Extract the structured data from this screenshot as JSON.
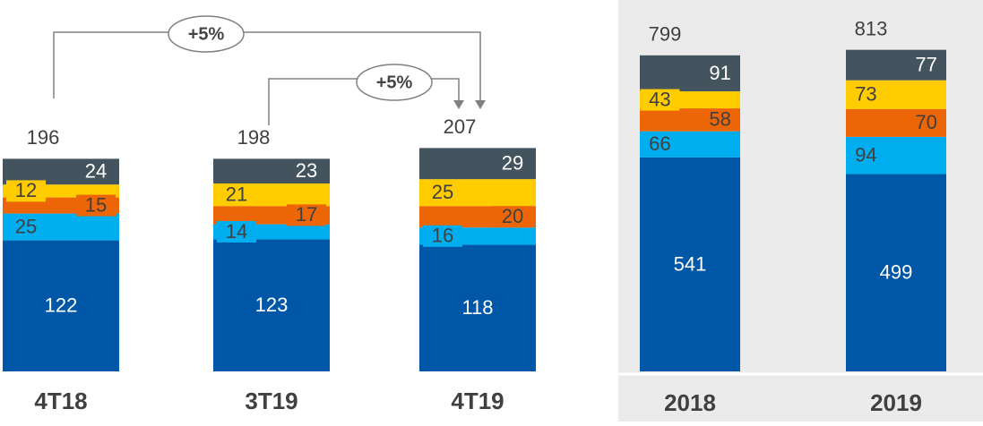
{
  "chart_data": [
    {
      "type": "stacked_bar",
      "categories": [
        "4T18",
        "3T19",
        "4T19"
      ],
      "series": [
        {
          "color": "#0057a8",
          "values": [
            122,
            123,
            118
          ]
        },
        {
          "color": "#00aeef",
          "values": [
            25,
            14,
            16
          ]
        },
        {
          "color": "#ec6608",
          "values": [
            15,
            17,
            20
          ]
        },
        {
          "color": "#ffcc00",
          "values": [
            12,
            21,
            25
          ]
        },
        {
          "color": "#44545f",
          "values": [
            24,
            23,
            29
          ]
        }
      ],
      "totals": [
        196,
        198,
        207
      ],
      "annotations": [
        "+5%",
        "+5%"
      ]
    },
    {
      "type": "stacked_bar",
      "categories": [
        "2018",
        "2019"
      ],
      "series": [
        {
          "color": "#0057a8",
          "values": [
            541,
            499
          ]
        },
        {
          "color": "#00aeef",
          "values": [
            66,
            94
          ]
        },
        {
          "color": "#ec6608",
          "values": [
            58,
            70
          ]
        },
        {
          "color": "#ffcc00",
          "values": [
            43,
            73
          ]
        },
        {
          "color": "#44545f",
          "values": [
            91,
            77
          ]
        }
      ],
      "totals": [
        799,
        813
      ]
    }
  ]
}
